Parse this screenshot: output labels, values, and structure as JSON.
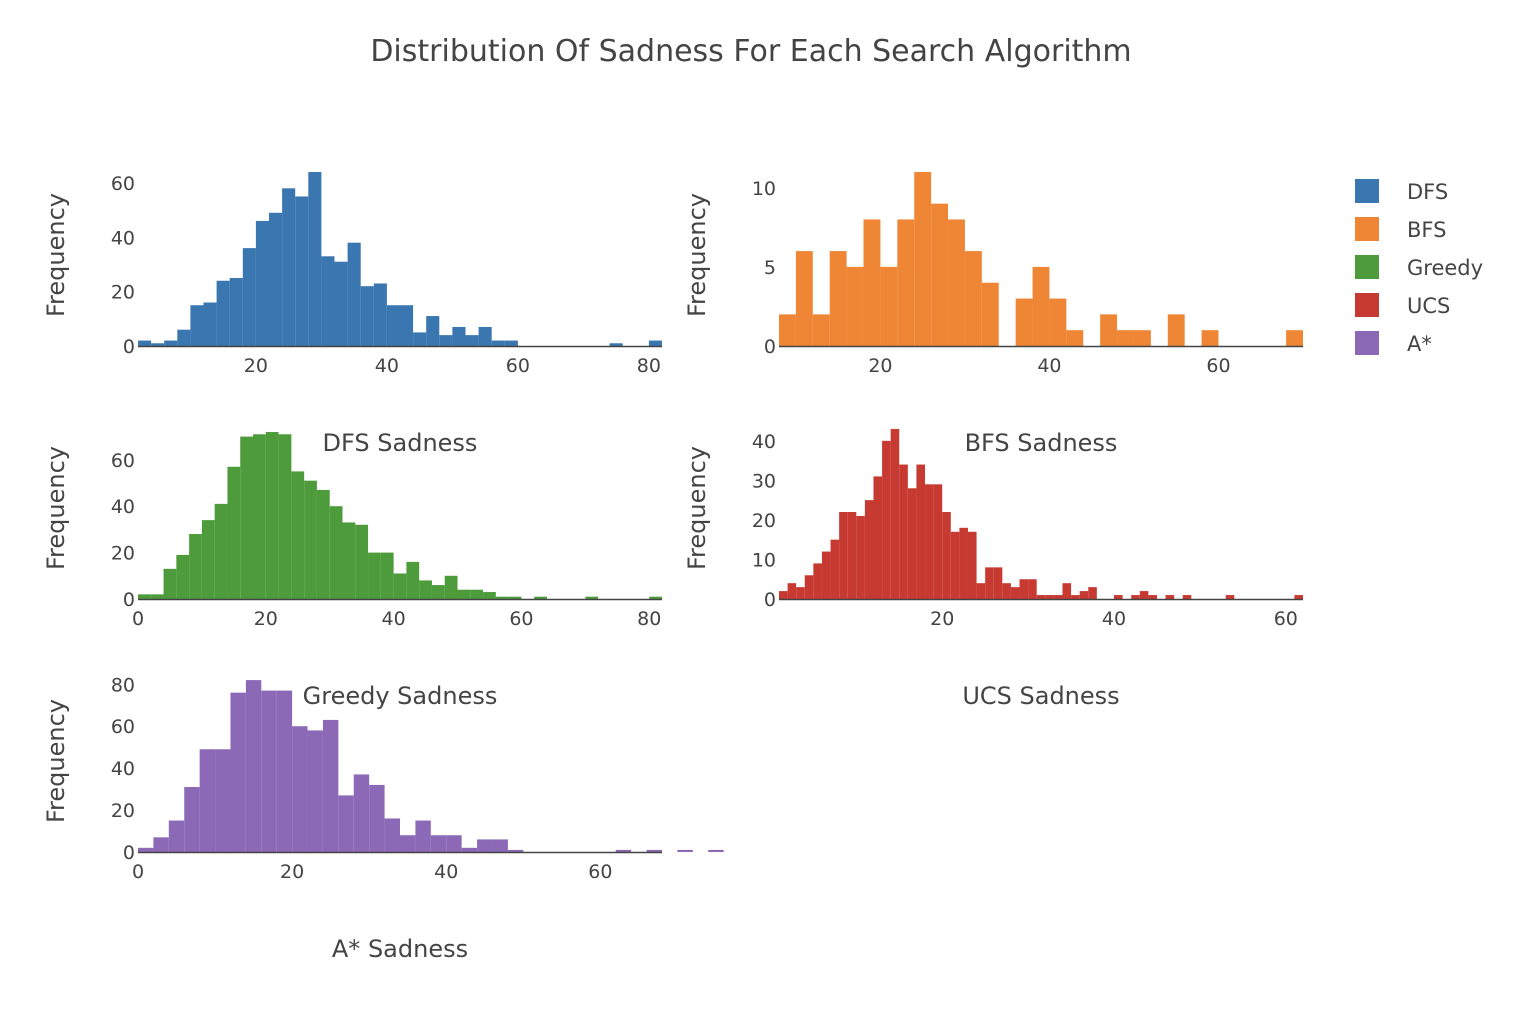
{
  "chart_data": {
    "type": "bar",
    "title": "Distribution Of Sadness For Each Search Algorithm",
    "legend": {
      "position": "top-right",
      "items": [
        {
          "name": "DFS",
          "color": "#3a76af"
        },
        {
          "name": "BFS",
          "color": "#ee8636"
        },
        {
          "name": "Greedy",
          "color": "#4d9b3a"
        },
        {
          "name": "UCS",
          "color": "#c73a32"
        },
        {
          "name": "A*",
          "color": "#8c69b6"
        }
      ]
    },
    "subplots": [
      {
        "name": "DFS",
        "color": "#3a76af",
        "xlabel": "DFS Sadness",
        "ylabel": "Frequency",
        "xlim": [
          2,
          82
        ],
        "ylim": [
          0,
          64
        ],
        "xticks": [
          20,
          40,
          60,
          80
        ],
        "yticks": [
          0,
          20,
          40,
          60
        ],
        "bin_start": 2,
        "bin_width": 2,
        "values": [
          2,
          1,
          2,
          6,
          15,
          16,
          24,
          25,
          36,
          46,
          49,
          58,
          55,
          64,
          33,
          31,
          38,
          22,
          23,
          15,
          15,
          5,
          11,
          4,
          7,
          4,
          7,
          2,
          2,
          0,
          0,
          0,
          0,
          0,
          0,
          0,
          1,
          0,
          0,
          2
        ]
      },
      {
        "name": "BFS",
        "color": "#ee8636",
        "xlabel": "BFS Sadness",
        "ylabel": "Frequency",
        "xlim": [
          8,
          70
        ],
        "ylim": [
          0,
          11
        ],
        "xticks": [
          20,
          40,
          60
        ],
        "yticks": [
          0,
          5,
          10
        ],
        "bin_start": 8,
        "bin_width": 2,
        "values": [
          2,
          6,
          2,
          6,
          5,
          8,
          5,
          8,
          11,
          9,
          8,
          6,
          4,
          0,
          3,
          5,
          3,
          1,
          0,
          2,
          1,
          1,
          0,
          2,
          0,
          1,
          0,
          0,
          0,
          0,
          1
        ]
      },
      {
        "name": "Greedy",
        "color": "#4d9b3a",
        "xlabel": "Greedy Sadness",
        "ylabel": "Frequency",
        "xlim": [
          0,
          82
        ],
        "ylim": [
          0,
          75
        ],
        "xticks": [
          0,
          20,
          40,
          60,
          80
        ],
        "yticks": [
          0,
          20,
          40,
          60
        ],
        "bin_start": 0,
        "bin_width": 2,
        "values": [
          2,
          2,
          13,
          19,
          28,
          34,
          41,
          57,
          70,
          71,
          72,
          71,
          55,
          51,
          47,
          40,
          33,
          32,
          20,
          20,
          11,
          16,
          8,
          6,
          10,
          4,
          4,
          3,
          1,
          1,
          0,
          1,
          0,
          0,
          0,
          1,
          0,
          0,
          0,
          0,
          1
        ]
      },
      {
        "name": "UCS",
        "color": "#c73a32",
        "xlabel": "UCS Sadness",
        "ylabel": "Frequency",
        "xlim": [
          1,
          62
        ],
        "ylim": [
          0,
          44
        ],
        "xticks": [
          20,
          40,
          60
        ],
        "yticks": [
          0,
          10,
          20,
          30,
          40
        ],
        "bin_start": 1,
        "bin_width": 1,
        "values": [
          2,
          4,
          3,
          6,
          9,
          12,
          15,
          22,
          22,
          21,
          25,
          31,
          40,
          43,
          34,
          28,
          34,
          29,
          29,
          22,
          17,
          18,
          17,
          4,
          8,
          8,
          4,
          3,
          5,
          5,
          1,
          1,
          1,
          4,
          1,
          2,
          3,
          0,
          0,
          1,
          0,
          1,
          2,
          1,
          0,
          1,
          0,
          1,
          0,
          0,
          0,
          0,
          1,
          0,
          0,
          0,
          0,
          0,
          0,
          0,
          1
        ]
      },
      {
        "name": "A*",
        "color": "#8c69b6",
        "xlabel": "A* Sadness",
        "ylabel": "Frequency",
        "xlim": [
          0,
          68
        ],
        "ylim": [
          0,
          83
        ],
        "xticks": [
          0,
          20,
          40,
          60
        ],
        "yticks": [
          0,
          20,
          40,
          60,
          80
        ],
        "bin_start": 0,
        "bin_width": 2,
        "values": [
          2,
          7,
          15,
          31,
          49,
          49,
          76,
          82,
          77,
          77,
          60,
          58,
          63,
          27,
          37,
          32,
          16,
          8,
          15,
          8,
          8,
          2,
          6,
          6,
          1,
          0,
          0,
          0,
          0,
          0,
          0,
          1,
          0,
          1,
          0,
          1,
          0,
          1
        ]
      }
    ]
  }
}
